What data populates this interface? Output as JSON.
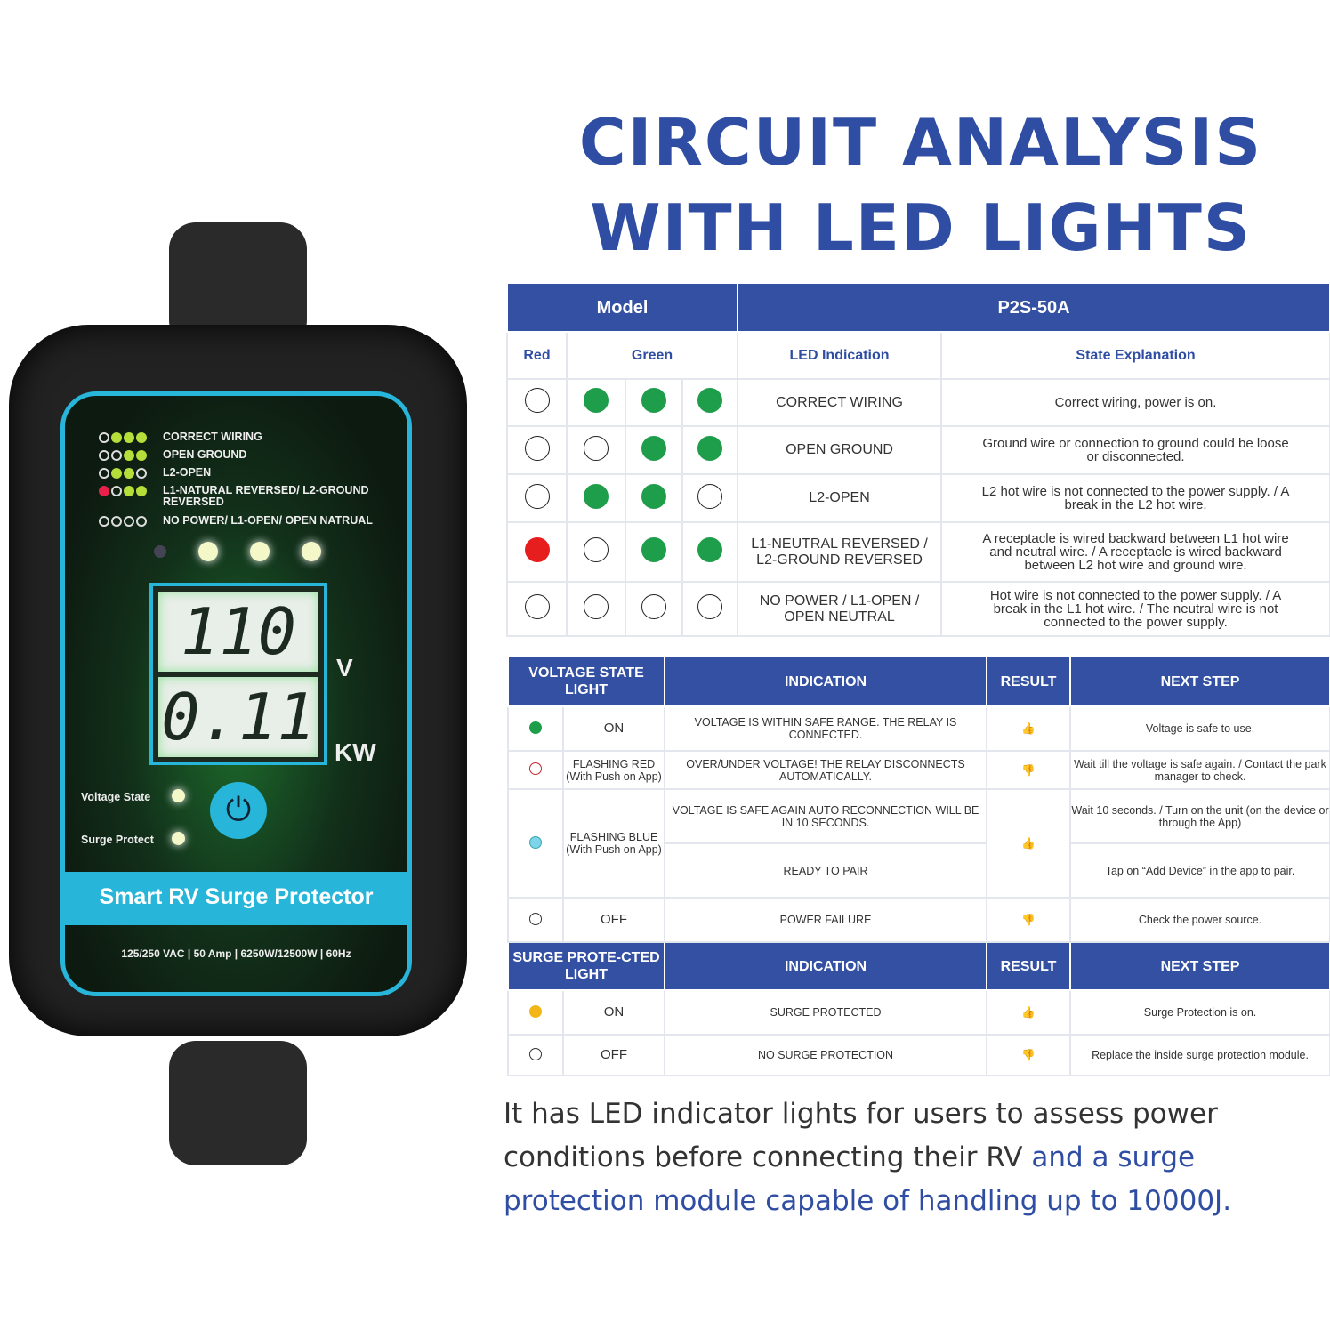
{
  "title": {
    "line1": "CIRCUIT ANALYSIS",
    "line2": "WITH LED LIGHTS"
  },
  "device": {
    "legend": [
      {
        "leds": [
          "off",
          "green",
          "green",
          "green"
        ],
        "text": "CORRECT WIRING"
      },
      {
        "leds": [
          "off",
          "off",
          "green",
          "green"
        ],
        "text": "OPEN GROUND"
      },
      {
        "leds": [
          "off",
          "green",
          "green",
          "off"
        ],
        "text": "L2-OPEN"
      },
      {
        "leds": [
          "red",
          "off",
          "green",
          "green"
        ],
        "text": "L1-NATURAL REVERSED/ L2-GROUND REVERSED"
      },
      {
        "leds": [
          "off",
          "off",
          "off",
          "off"
        ],
        "text": "NO POWER/ L1-OPEN/ OPEN NATRUAL"
      }
    ],
    "voltage": "110",
    "voltage_unit": "V",
    "power": "0.11",
    "power_unit": "KW",
    "voltage_state_label": "Voltage State",
    "surge_protect_label": "Surge Protect",
    "power_icon": "power-icon",
    "name": "Smart RV Surge Protector",
    "spec": "125/250 VAC | 50 Amp | 6250W/12500W | 60Hz"
  },
  "led_table": {
    "model_label": "Model",
    "model_value": "P2S-50A",
    "headers": {
      "red": "Red",
      "green": "Green",
      "indication": "LED Indication",
      "explanation": "State Explanation"
    },
    "rows": [
      {
        "leds": [
          "off",
          "green",
          "green",
          "green"
        ],
        "indication": "CORRECT WIRING",
        "explanation": "Correct wiring, power is on."
      },
      {
        "leds": [
          "off",
          "off",
          "green",
          "green"
        ],
        "indication": "OPEN GROUND",
        "explanation": "Ground wire or connection to ground could be loose or disconnected."
      },
      {
        "leds": [
          "off",
          "green",
          "green",
          "off"
        ],
        "indication": "L2-OPEN",
        "explanation": "L2 hot wire is not connected to the power supply. / A break in the L2 hot wire."
      },
      {
        "leds": [
          "red",
          "off",
          "green",
          "green"
        ],
        "indication": "L1-NEUTRAL REVERSED / L2-GROUND REVERSED",
        "explanation": "A receptacle is wired backward between L1 hot wire and neutral wire. / A receptacle is wired backward between L2 hot wire and ground wire."
      },
      {
        "leds": [
          "off",
          "off",
          "off",
          "off"
        ],
        "indication": "NO POWER / L1-OPEN / OPEN NEUTRAL",
        "explanation": "Hot wire is not connected to the power supply. / A break in the L1 hot wire. / The neutral wire is not connected to the power supply."
      }
    ]
  },
  "state_table": {
    "voltage_headers": [
      "VOLTAGE STATE LIGHT",
      "INDICATION",
      "RESULT",
      "NEXT STEP"
    ],
    "voltage_rows": {
      "on": {
        "color": "#1e9e4a",
        "state": "ON",
        "indication": "VOLTAGE IS WITHIN SAFE RANGE. THE RELAY IS CONNECTED.",
        "result": "thumbs-up",
        "next": "Voltage is safe to use."
      },
      "red": {
        "color": "#c0282d",
        "state": "FLASHING RED",
        "sub": "(With Push on App)",
        "indication": "OVER/UNDER VOLTAGE! THE RELAY DISCONNECTS AUTOMATICALLY.",
        "result": "thumbs-down",
        "next": "Wait till the voltage is safe again. / Contact the park manager to check."
      },
      "blue": {
        "color": "#7fd3ea",
        "state": "FLASHING BLUE",
        "sub": "(With Push on App)",
        "indication1": "VOLTAGE IS SAFE AGAIN AUTO RECONNECTION WILL BE IN 10 SECONDS.",
        "next1": "Wait 10 seconds. / Turn on the unit (on the device or through the App)",
        "indication2": "READY TO PAIR",
        "next2": "Tap on “Add Device” in the app to pair.",
        "result": "thumbs-up"
      },
      "off": {
        "state": "OFF",
        "indication": "POWER FAILURE",
        "result": "thumbs-down",
        "next": "Check the power source."
      }
    },
    "surge_headers": [
      "SURGE PROTE-CTED LIGHT",
      "INDICATION",
      "RESULT",
      "NEXT STEP"
    ],
    "surge_rows": {
      "on": {
        "color": "#f2b619",
        "state": "ON",
        "indication": "SURGE PROTECTED",
        "result": "thumbs-up",
        "next": "Surge Protection is on."
      },
      "off": {
        "state": "OFF",
        "indication": "NO SURGE PROTECTION",
        "result": "thumbs-down",
        "next": "Replace the inside surge protection module."
      }
    }
  },
  "description": {
    "part1": "It has LED indicator lights for users to assess power conditions before connecting their RV ",
    "part2": "and a surge protection module capable of handling up to 10000J."
  },
  "colors": {
    "accent": "#3350a2",
    "green": "#1e9e4a",
    "red": "#e61e1e",
    "device_cyan": "#27b6d9"
  }
}
